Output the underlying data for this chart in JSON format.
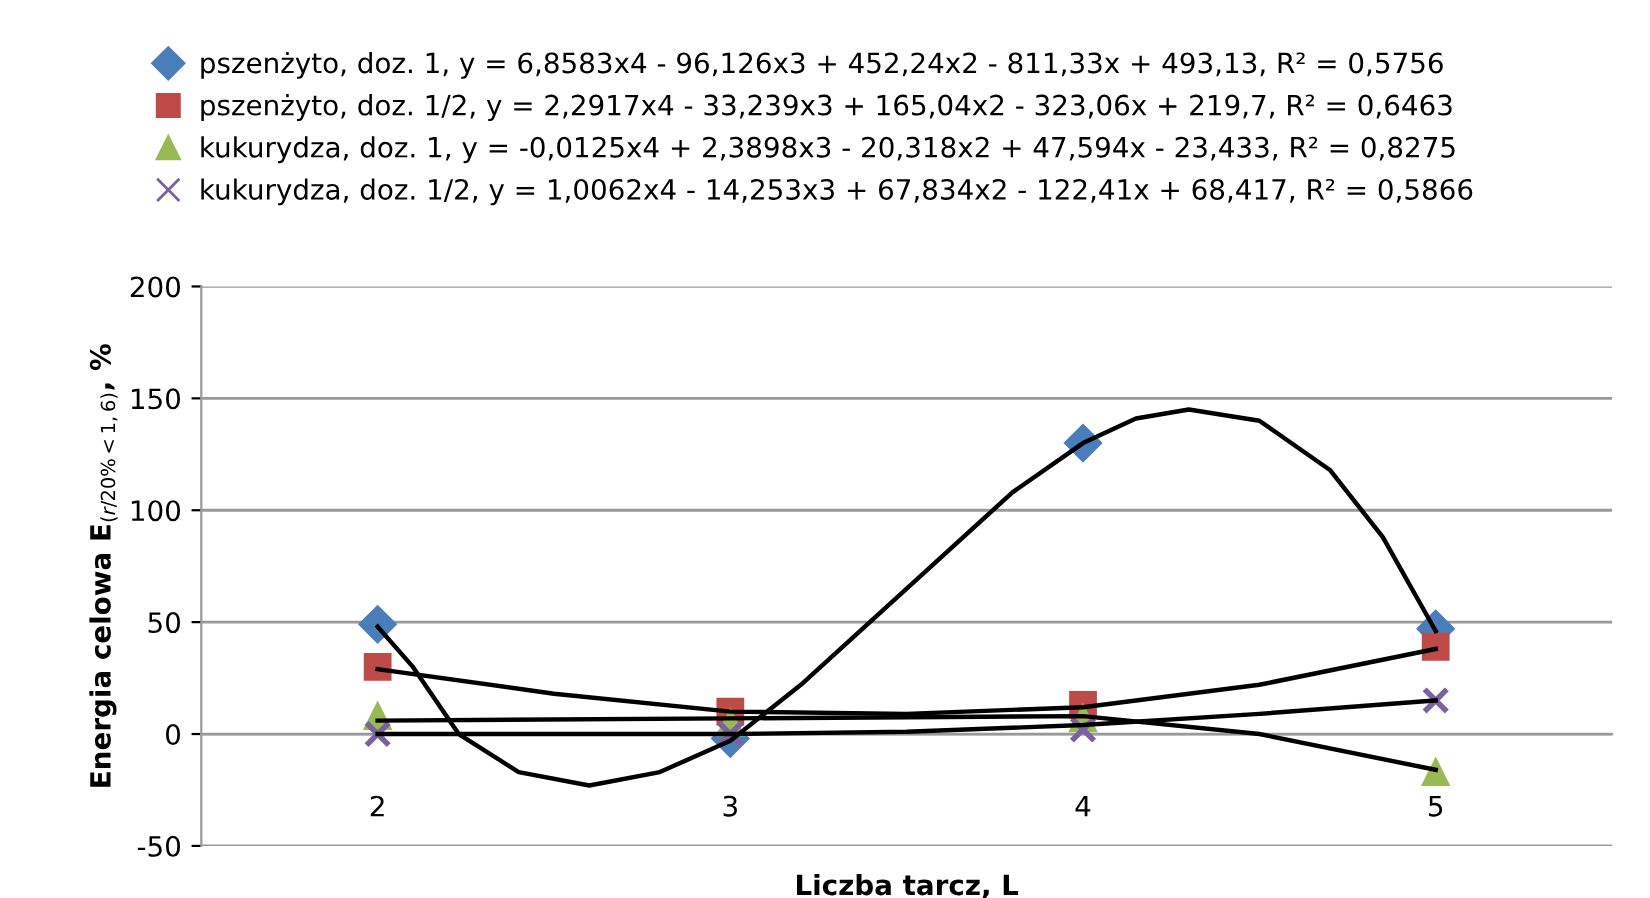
{
  "chart_data": {
    "type": "scatter",
    "xlabel": "Liczba tarcz, L",
    "ylabel": "Energia celowa E$_{(r/20%<1,6)}$, %",
    "xlim": [
      1.5,
      5.5
    ],
    "xticks": [
      2,
      3,
      4,
      5
    ],
    "ylim": [
      -50,
      200
    ],
    "yticks": [
      -50,
      0,
      50,
      100,
      150,
      200
    ],
    "grid": "y",
    "legend": "top",
    "series": [
      {
        "name": "pszenżyto, doz. 1, y = 6,8583x4 - 96,126x3 + 452,24x2 - 811,33x + 493,13, R² = 0,5756",
        "color": "#4a7ebb",
        "marker": "diamond",
        "x": [
          2,
          3,
          4,
          5
        ],
        "values": [
          49,
          -2,
          130,
          47
        ]
      },
      {
        "name": "pszenżyto, doz. 1/2, y = 2,2917x4 - 33,239x3 + 165,04x2 - 323,06x + 219,7, R² = 0,6463",
        "color": "#be4b48",
        "marker": "square",
        "x": [
          2,
          3,
          4,
          5
        ],
        "values": [
          30,
          10,
          13,
          39
        ]
      },
      {
        "name": "kukurydza, doz. 1, y = -0,0125x4 + 2,3898x3 - 20,318x2 + 47,594x - 23,433, R² = 0,8275",
        "color": "#98b954",
        "marker": "triangle",
        "x": [
          2,
          3,
          4,
          5
        ],
        "values": [
          8,
          5,
          7,
          -17
        ]
      },
      {
        "name": "kukurydza, doz. 1/2, y = 1,0062x4 - 14,253x3 + 67,834x2 - 122,41x + 68,417, R² = 0,5866",
        "color": "#7d60a0",
        "marker": "cross",
        "x": [
          2,
          3,
          4,
          5
        ],
        "values": [
          0,
          0,
          2,
          15
        ]
      },
      {
        "type": "line",
        "color": "#000000",
        "marker": "none",
        "x": [
          2,
          2.1,
          2.23,
          2.4,
          2.6,
          2.8,
          3.0,
          3.2,
          3.5,
          3.8,
          4.0,
          4.15,
          4.3,
          4.5,
          4.7,
          4.85,
          5
        ],
        "values": [
          48,
          30,
          0,
          -17,
          -23,
          -17,
          -3,
          22,
          65,
          108,
          130,
          141,
          145,
          140,
          118,
          88,
          46
        ]
      },
      {
        "type": "line",
        "color": "#000000",
        "marker": "none",
        "x": [
          2,
          2.5,
          3,
          3.5,
          4,
          4.5,
          5
        ],
        "values": [
          29,
          18,
          10,
          9,
          12,
          22,
          38
        ]
      },
      {
        "type": "line",
        "color": "#000000",
        "marker": "none",
        "x": [
          2,
          3,
          4,
          4.5,
          5
        ],
        "values": [
          6,
          7,
          8,
          0,
          -16
        ]
      },
      {
        "type": "line",
        "color": "#000000",
        "marker": "none",
        "x": [
          2,
          3,
          3.5,
          4,
          4.5,
          5
        ],
        "values": [
          0,
          0,
          1,
          4,
          9,
          15
        ]
      }
    ]
  }
}
